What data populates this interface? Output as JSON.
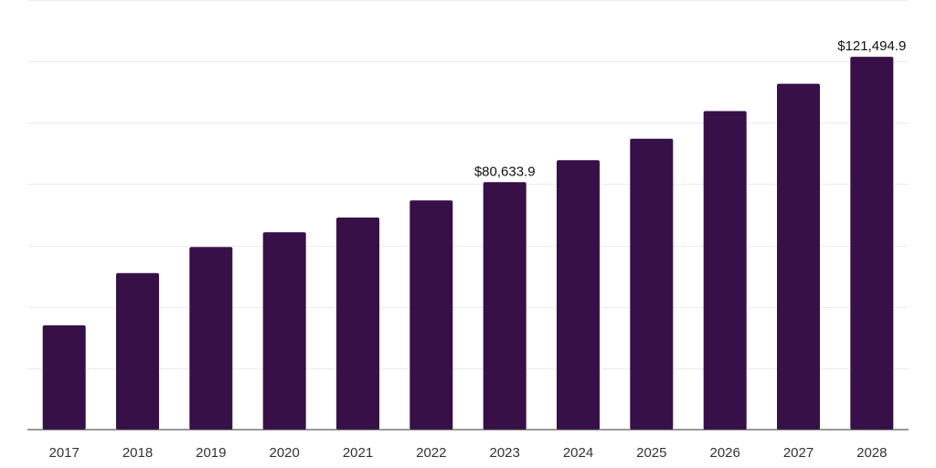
{
  "chart_data": {
    "type": "bar",
    "categories": [
      "2017",
      "2018",
      "2019",
      "2020",
      "2021",
      "2022",
      "2023",
      "2024",
      "2025",
      "2026",
      "2027",
      "2028"
    ],
    "values": [
      34000,
      51000,
      59500,
      64300,
      69100,
      74700,
      80633.9,
      87800,
      94800,
      103800,
      112700,
      121494.9
    ],
    "data_labels": [
      {
        "index": 6,
        "text": "$80,633.9"
      },
      {
        "index": 11,
        "text": "$121,494.9"
      }
    ],
    "ylim": [
      0,
      140000
    ],
    "gridlines": [
      0,
      20000,
      40000,
      60000,
      80000,
      100000,
      120000,
      140000
    ],
    "bar_color": "#371047",
    "grid": true,
    "legend": "none"
  }
}
